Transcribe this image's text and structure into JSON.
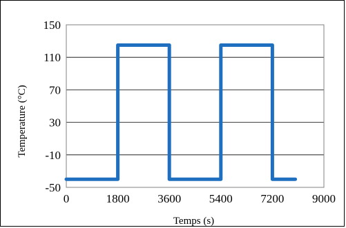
{
  "chart_data": {
    "type": "line",
    "title": "",
    "xlabel": "Temps (s)",
    "ylabel": "Temperature (°C)",
    "xlim": [
      0,
      9000
    ],
    "ylim": [
      -50,
      150
    ],
    "xticks": [
      0,
      1800,
      3600,
      5400,
      7200,
      9000
    ],
    "yticks": [
      -50,
      -10,
      30,
      70,
      110,
      150
    ],
    "xtick_labels": [
      "0",
      "1800",
      "3600",
      "5400",
      "7200",
      "9000"
    ],
    "ytick_labels": [
      "-50",
      "-10",
      "30",
      "70",
      "110",
      "150"
    ],
    "grid": "horizontal",
    "legend": "none",
    "series": [
      {
        "color": "#1f6fc0",
        "x": [
          0,
          1800,
          1800,
          3600,
          3600,
          5400,
          5400,
          7200,
          7200,
          8000
        ],
        "y": [
          -40,
          -40,
          125,
          125,
          -40,
          -40,
          125,
          125,
          -40,
          -40
        ]
      }
    ]
  }
}
